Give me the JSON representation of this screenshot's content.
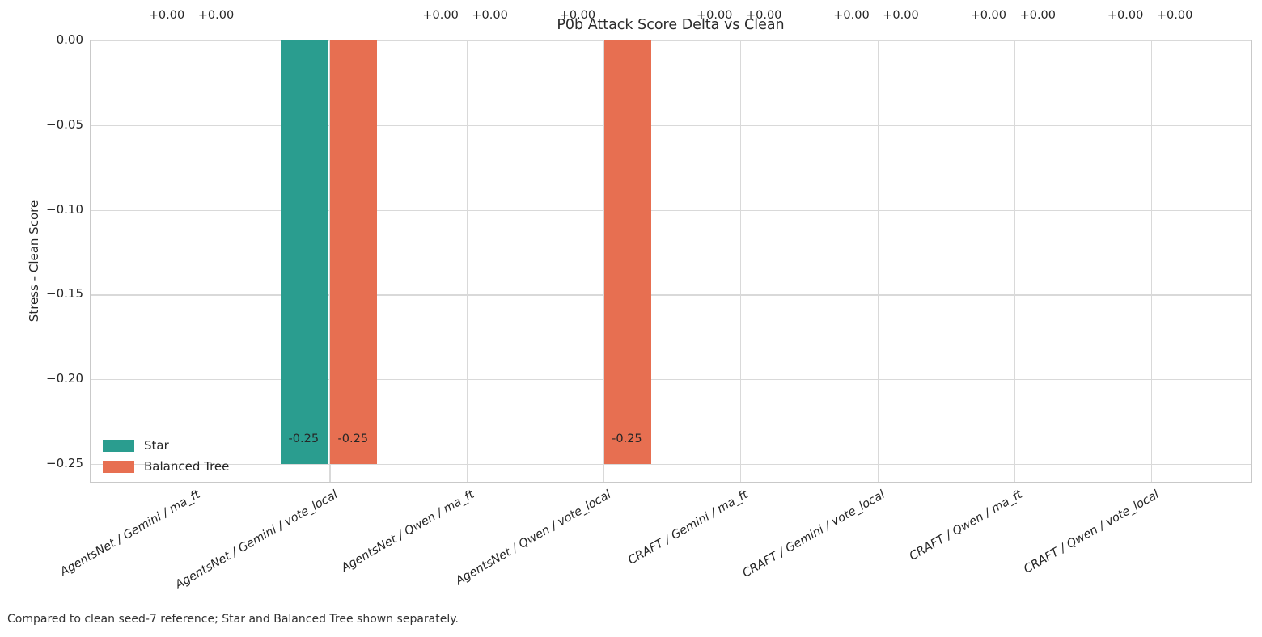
{
  "chart_data": {
    "type": "bar",
    "title": "P0b Attack Score Delta vs Clean",
    "ylabel": "Stress - Clean Score",
    "xlabel": "",
    "footnote": "Compared to clean seed-7 reference; Star and Balanced Tree shown separately.",
    "categories": [
      "AgentsNet / Gemini / ma_ft",
      "AgentsNet / Gemini / vote_local",
      "AgentsNet / Qwen / ma_ft",
      "AgentsNet / Qwen / vote_local",
      "CRAFT / Gemini / ma_ft",
      "CRAFT / Gemini / vote_local",
      "CRAFT / Qwen / ma_ft",
      "CRAFT / Qwen / vote_local"
    ],
    "series": [
      {
        "name": "Star",
        "color": "#2a9d8f",
        "values": [
          0,
          -0.25,
          0,
          0,
          0,
          0,
          0,
          0
        ],
        "bar_labels": [
          "+0.00",
          "-0.25",
          "+0.00",
          "+0.00",
          "+0.00",
          "+0.00",
          "+0.00",
          "+0.00"
        ]
      },
      {
        "name": "Balanced Tree",
        "color": "#e76f51",
        "values": [
          0,
          -0.25,
          0,
          -0.25,
          0,
          0,
          0,
          0
        ],
        "bar_labels": [
          "+0.00",
          "-0.25",
          "+0.00",
          "-0.25",
          "+0.00",
          "+0.00",
          "+0.00",
          "+0.00"
        ]
      }
    ],
    "yticks": [
      0,
      -0.05,
      -0.1,
      -0.15,
      -0.2,
      -0.25
    ],
    "ytick_labels": [
      "0.00",
      "−0.05",
      "−0.10",
      "−0.15",
      "−0.20",
      "−0.25"
    ],
    "ylim": [
      -0.2614,
      0
    ],
    "grid": true,
    "legend_position": "lower left",
    "colors": {
      "grid": "#d9d9d9",
      "spine": "#c9c9c9",
      "text": "#262626"
    }
  }
}
